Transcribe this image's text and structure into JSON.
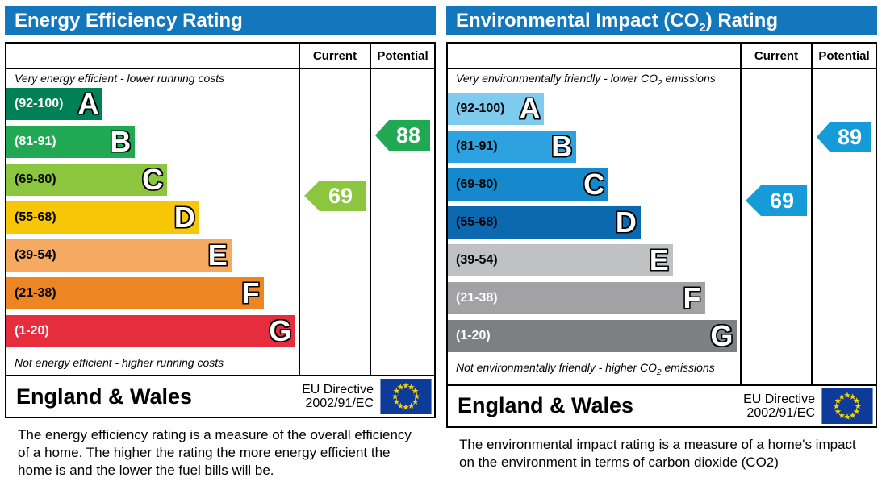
{
  "page": {
    "background": "#ffffff",
    "header_color": "#1277bd"
  },
  "flag": {
    "name": "eu-flag",
    "background": "#0e3a99",
    "star_color": "#f0d20a"
  },
  "chart_data": [
    {
      "type": "bar",
      "chart": "epc-energy-efficiency-rating",
      "title": "Energy Efficiency Rating",
      "columns": [
        "Current",
        "Potential"
      ],
      "top_caption": "Very energy efficient - lower running costs",
      "bottom_caption": "Not energy efficient - higher running costs",
      "axis_range": [
        1,
        100
      ],
      "bands": [
        {
          "grade": "A",
          "range_label": "(92-100)",
          "min": 92,
          "max": 100,
          "color": "#008054",
          "label_color": "#ffffff",
          "width_pct": 33
        },
        {
          "grade": "B",
          "range_label": "(81-91)",
          "min": 81,
          "max": 91,
          "color": "#21a853",
          "label_color": "#ffffff",
          "width_pct": 44
        },
        {
          "grade": "C",
          "range_label": "(69-80)",
          "min": 69,
          "max": 80,
          "color": "#8bc63e",
          "label_color": "#000000",
          "width_pct": 55
        },
        {
          "grade": "D",
          "range_label": "(55-68)",
          "min": 55,
          "max": 68,
          "color": "#f7c707",
          "label_color": "#000000",
          "width_pct": 66
        },
        {
          "grade": "E",
          "range_label": "(39-54)",
          "min": 39,
          "max": 54,
          "color": "#f5a961",
          "label_color": "#000000",
          "width_pct": 77
        },
        {
          "grade": "F",
          "range_label": "(21-38)",
          "min": 21,
          "max": 38,
          "color": "#ee8523",
          "label_color": "#000000",
          "width_pct": 88
        },
        {
          "grade": "G",
          "range_label": "(1-20)",
          "min": 1,
          "max": 20,
          "color": "#e52d3e",
          "label_color": "#ffffff",
          "width_pct": 99
        }
      ],
      "current": {
        "value": 69,
        "color": "#8bc63e"
      },
      "potential": {
        "value": 88,
        "color": "#21a853"
      },
      "footer": {
        "region": "England & Wales",
        "directive": [
          "EU Directive",
          "2002/91/EC"
        ]
      },
      "description": "The energy efficiency rating is a measure of the overall efficiency of a home.  The higher the rating the more energy efficient the home is and the lower the fuel bills will be."
    },
    {
      "type": "bar",
      "chart": "epc-environmental-impact-co2-rating",
      "title_prefix": "Environmental Impact (CO",
      "title_sub": "2",
      "title_suffix": ") Rating",
      "columns": [
        "Current",
        "Potential"
      ],
      "top_caption_prefix": "Very environmentally friendly - lower CO",
      "top_caption_sub": "2",
      "top_caption_suffix": " emissions",
      "bottom_caption_prefix": "Not environmentally friendly - higher CO",
      "bottom_caption_sub": "2",
      "bottom_caption_suffix": " emissions",
      "axis_range": [
        1,
        100
      ],
      "bands": [
        {
          "grade": "A",
          "range_label": "(92-100)",
          "min": 92,
          "max": 100,
          "color": "#7fcbf0",
          "label_color": "#000000",
          "width_pct": 33
        },
        {
          "grade": "B",
          "range_label": "(81-91)",
          "min": 81,
          "max": 91,
          "color": "#2ca2e0",
          "label_color": "#000000",
          "width_pct": 44
        },
        {
          "grade": "C",
          "range_label": "(69-80)",
          "min": 69,
          "max": 80,
          "color": "#1589cc",
          "label_color": "#000000",
          "width_pct": 55
        },
        {
          "grade": "D",
          "range_label": "(55-68)",
          "min": 55,
          "max": 68,
          "color": "#0c69af",
          "label_color": "#000000",
          "width_pct": 66
        },
        {
          "grade": "E",
          "range_label": "(39-54)",
          "min": 39,
          "max": 54,
          "color": "#c0c1c3",
          "label_color": "#000000",
          "width_pct": 77
        },
        {
          "grade": "F",
          "range_label": "(21-38)",
          "min": 21,
          "max": 38,
          "color": "#a2a2a4",
          "label_color": "#ffffff",
          "width_pct": 88
        },
        {
          "grade": "G",
          "range_label": "(1-20)",
          "min": 1,
          "max": 20,
          "color": "#7e7f81",
          "label_color": "#ffffff",
          "width_pct": 99
        }
      ],
      "current": {
        "value": 69,
        "color": "#149bd8"
      },
      "potential": {
        "value": 89,
        "color": "#149bd8"
      },
      "footer": {
        "region": "England & Wales",
        "directive": [
          "EU Directive",
          "2002/91/EC"
        ]
      },
      "description": "The environmental impact rating is a measure of a home's impact on the environment in terms of carbon dioxide (CO2)"
    }
  ]
}
